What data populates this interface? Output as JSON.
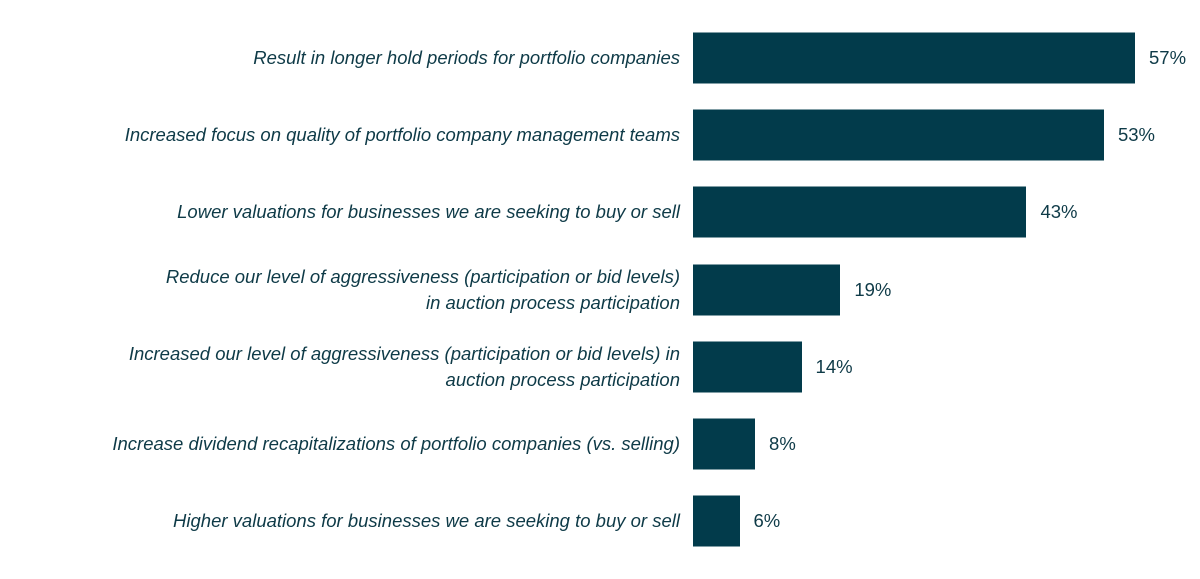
{
  "chart_data": {
    "type": "bar",
    "orientation": "horizontal",
    "color": "#023b4b",
    "categories": [
      "Result in longer hold periods for portfolio companies",
      "Increased focus on quality of portfolio company management teams",
      "Lower valuations for businesses we are seeking to buy or sell",
      "Reduce our level of aggressiveness (participation or bid levels)\nin auction process participation",
      "Increased our level of aggressiveness (participation or bid levels) in\nauction process participation",
      "Increase dividend recapitalizations of portfolio companies (vs. selling)",
      "Higher valuations for businesses we are seeking to buy or sell"
    ],
    "values": [
      57,
      53,
      43,
      19,
      14,
      8,
      6
    ],
    "value_labels": [
      "57%",
      "53%",
      "43%",
      "19%",
      "14%",
      "8%",
      "6%"
    ]
  }
}
